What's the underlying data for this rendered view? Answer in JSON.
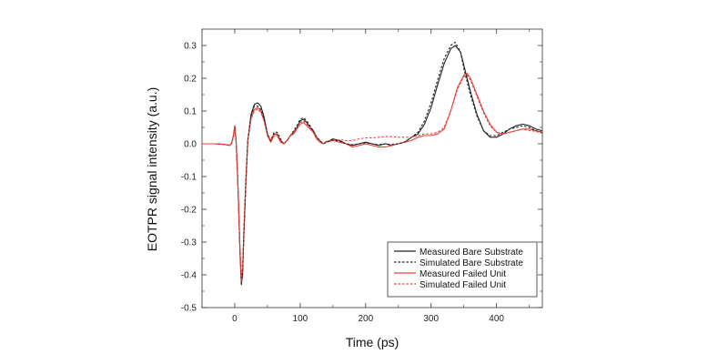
{
  "chart_data": {
    "type": "line",
    "title": "",
    "xlabel": "Time (ps)",
    "ylabel": "EOTPR signal intensity (a.u.)",
    "xlim": [
      -50,
      470
    ],
    "ylim": [
      -0.5,
      0.35
    ],
    "x_ticks": [
      0,
      100,
      200,
      300,
      400
    ],
    "x_tick_labels": [
      "0",
      "100",
      "200",
      "300",
      "400"
    ],
    "y_ticks": [
      0.3,
      0.2,
      0.1,
      0.0,
      -0.1,
      -0.2,
      -0.3,
      -0.4,
      -0.5
    ],
    "y_tick_labels": [
      "0.3",
      "0.2",
      "0.1",
      "0.0",
      "-0.1",
      "-0.2",
      "-0.3",
      "-0.4",
      "-0.5"
    ],
    "grid": false,
    "legend_position": "bottom-right",
    "series": [
      {
        "name": "Measured Bare Substrate",
        "color": "#222222",
        "dash": "solid",
        "x": [
          -50,
          -30,
          -15,
          -8,
          -5,
          -2,
          0,
          2,
          4,
          6,
          8,
          10,
          12,
          14,
          17,
          20,
          25,
          30,
          35,
          40,
          45,
          50,
          55,
          60,
          65,
          70,
          75,
          80,
          85,
          90,
          95,
          100,
          105,
          110,
          115,
          120,
          125,
          130,
          135,
          140,
          150,
          160,
          170,
          180,
          190,
          200,
          210,
          220,
          230,
          240,
          250,
          260,
          270,
          280,
          290,
          300,
          310,
          320,
          330,
          337,
          345,
          350,
          360,
          370,
          380,
          390,
          400,
          410,
          420,
          430,
          440,
          450,
          460,
          470
        ],
        "y": [
          0.0,
          0.0,
          -0.002,
          -0.005,
          0.0,
          0.025,
          0.055,
          0.01,
          -0.08,
          -0.2,
          -0.33,
          -0.43,
          -0.4,
          -0.28,
          -0.12,
          0.01,
          0.09,
          0.12,
          0.125,
          0.115,
          0.08,
          0.03,
          0.005,
          0.03,
          0.03,
          0.01,
          0.0,
          0.01,
          0.025,
          0.035,
          0.05,
          0.07,
          0.075,
          0.065,
          0.05,
          0.04,
          0.02,
          0.01,
          0.0,
          0.005,
          0.015,
          0.01,
          0.0,
          -0.005,
          0.0,
          0.005,
          0.0,
          -0.005,
          0.0,
          -0.005,
          0.0,
          0.005,
          0.02,
          0.03,
          0.06,
          0.11,
          0.18,
          0.245,
          0.29,
          0.3,
          0.28,
          0.24,
          0.16,
          0.09,
          0.04,
          0.02,
          0.02,
          0.03,
          0.045,
          0.055,
          0.06,
          0.055,
          0.045,
          0.04
        ]
      },
      {
        "name": "Simulated Bare Substrate",
        "color": "#222222",
        "dash": "dotted",
        "x": [
          -50,
          -30,
          -15,
          -8,
          -5,
          -2,
          0,
          2,
          4,
          6,
          8,
          10,
          12,
          14,
          17,
          20,
          25,
          30,
          35,
          40,
          45,
          50,
          55,
          60,
          65,
          70,
          75,
          80,
          85,
          90,
          95,
          100,
          105,
          110,
          115,
          120,
          125,
          130,
          135,
          140,
          150,
          160,
          170,
          180,
          190,
          200,
          210,
          220,
          230,
          240,
          250,
          260,
          270,
          280,
          290,
          300,
          310,
          320,
          330,
          337,
          345,
          350,
          360,
          370,
          380,
          390,
          400,
          410,
          420,
          430,
          440,
          450,
          460,
          470
        ],
        "y": [
          0.0,
          0.0,
          -0.002,
          -0.004,
          0.0,
          0.02,
          0.05,
          0.01,
          -0.07,
          -0.19,
          -0.32,
          -0.41,
          -0.39,
          -0.27,
          -0.11,
          0.01,
          0.085,
          0.115,
          0.115,
          0.105,
          0.075,
          0.03,
          0.01,
          0.035,
          0.035,
          0.015,
          0.0,
          0.01,
          0.025,
          0.04,
          0.055,
          0.075,
          0.08,
          0.07,
          0.055,
          0.04,
          0.02,
          0.01,
          0.0,
          0.005,
          0.012,
          0.008,
          0.0,
          -0.003,
          0.0,
          0.003,
          0.0,
          -0.003,
          0.0,
          -0.002,
          0.0,
          0.006,
          0.02,
          0.035,
          0.07,
          0.125,
          0.195,
          0.26,
          0.3,
          0.31,
          0.28,
          0.23,
          0.15,
          0.085,
          0.04,
          0.025,
          0.025,
          0.035,
          0.045,
          0.05,
          0.055,
          0.05,
          0.04,
          0.035
        ]
      },
      {
        "name": "Measured Failed Unit",
        "color": "#e8403a",
        "dash": "solid",
        "x": [
          -50,
          -30,
          -15,
          -8,
          -5,
          -2,
          0,
          2,
          4,
          6,
          8,
          10,
          12,
          14,
          17,
          20,
          25,
          30,
          35,
          40,
          45,
          50,
          55,
          60,
          65,
          70,
          75,
          80,
          85,
          90,
          95,
          100,
          105,
          110,
          115,
          120,
          125,
          130,
          135,
          140,
          150,
          160,
          170,
          180,
          190,
          200,
          210,
          220,
          230,
          240,
          250,
          260,
          270,
          280,
          290,
          300,
          310,
          320,
          330,
          340,
          350,
          355,
          360,
          370,
          380,
          390,
          400,
          410,
          420,
          430,
          440,
          450,
          460,
          470
        ],
        "y": [
          0.0,
          0.0,
          -0.002,
          -0.005,
          0.0,
          0.025,
          0.055,
          0.01,
          -0.08,
          -0.2,
          -0.33,
          -0.42,
          -0.39,
          -0.27,
          -0.12,
          0.01,
          0.08,
          0.105,
          0.11,
          0.1,
          0.07,
          0.025,
          0.005,
          0.025,
          0.025,
          0.005,
          0.0,
          0.01,
          0.025,
          0.03,
          0.045,
          0.06,
          0.065,
          0.055,
          0.045,
          0.035,
          0.015,
          0.005,
          0.0,
          0.005,
          0.01,
          0.005,
          0.0,
          -0.01,
          -0.005,
          0.0,
          -0.005,
          -0.01,
          -0.01,
          -0.005,
          0.0,
          0.005,
          0.01,
          0.02,
          0.025,
          0.025,
          0.03,
          0.045,
          0.1,
          0.17,
          0.21,
          0.215,
          0.2,
          0.15,
          0.1,
          0.06,
          0.035,
          0.03,
          0.035,
          0.04,
          0.045,
          0.045,
          0.04,
          0.035
        ]
      },
      {
        "name": "Simulated Failed Unit",
        "color": "#e8403a",
        "dash": "dotted",
        "x": [
          -50,
          -30,
          -15,
          -8,
          -5,
          -2,
          0,
          2,
          4,
          6,
          8,
          10,
          12,
          14,
          17,
          20,
          25,
          30,
          35,
          40,
          45,
          50,
          55,
          60,
          65,
          70,
          75,
          80,
          85,
          90,
          95,
          100,
          105,
          110,
          115,
          120,
          125,
          130,
          135,
          140,
          150,
          160,
          170,
          180,
          190,
          200,
          210,
          220,
          230,
          240,
          250,
          260,
          270,
          280,
          290,
          300,
          310,
          320,
          330,
          340,
          350,
          355,
          360,
          370,
          380,
          390,
          400,
          410,
          420,
          430,
          440,
          450,
          460,
          470
        ],
        "y": [
          0.0,
          0.0,
          -0.002,
          -0.004,
          0.0,
          0.02,
          0.05,
          0.01,
          -0.07,
          -0.19,
          -0.31,
          -0.4,
          -0.38,
          -0.26,
          -0.11,
          0.01,
          0.075,
          0.1,
          0.105,
          0.095,
          0.07,
          0.03,
          0.01,
          0.03,
          0.03,
          0.01,
          0.0,
          0.01,
          0.025,
          0.035,
          0.05,
          0.065,
          0.07,
          0.06,
          0.05,
          0.035,
          0.02,
          0.01,
          0.0,
          0.008,
          0.012,
          0.012,
          0.01,
          0.01,
          0.015,
          0.018,
          0.018,
          0.02,
          0.022,
          0.022,
          0.02,
          0.02,
          0.02,
          0.025,
          0.03,
          0.03,
          0.035,
          0.05,
          0.1,
          0.165,
          0.205,
          0.21,
          0.195,
          0.145,
          0.095,
          0.055,
          0.035,
          0.03,
          0.035,
          0.04,
          0.045,
          0.04,
          0.038,
          0.032
        ]
      }
    ]
  }
}
